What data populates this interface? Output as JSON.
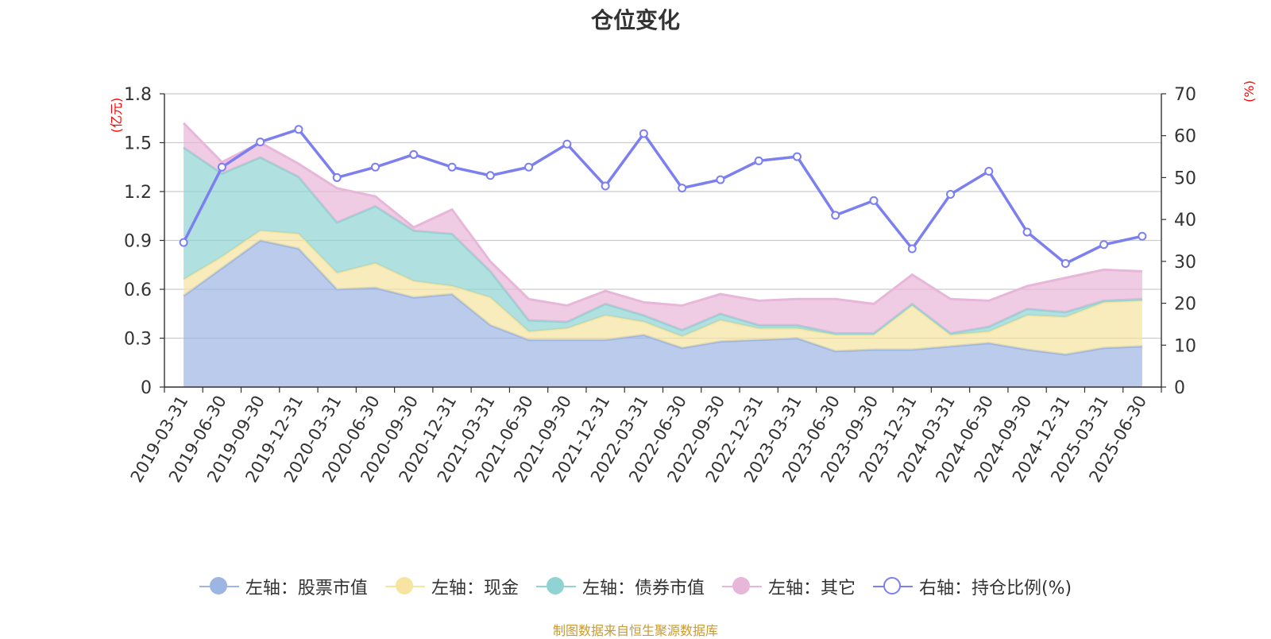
{
  "title": "仓位变化",
  "source_note": "制图数据来自恒生聚源数据库",
  "colors": {
    "stock": "#9db5e2",
    "cash": "#f7e4a0",
    "bond": "#8fd3d3",
    "other": "#e8b6d9",
    "ratio": "#7b7ff0",
    "unit": "#ff0000",
    "grid": "#cccccc"
  },
  "chart_data": {
    "type": "area",
    "title": "仓位变化",
    "left_axis": {
      "unit_label": "(亿元)",
      "ylim": [
        0,
        1.8
      ],
      "ticks": [
        "0",
        "0.3",
        "0.6",
        "0.9",
        "1.2",
        "1.5",
        "1.8"
      ]
    },
    "right_axis": {
      "unit_label": "(%)",
      "ylim": [
        0,
        70
      ],
      "ticks": [
        "0",
        "10",
        "20",
        "30",
        "40",
        "50",
        "60",
        "70"
      ]
    },
    "categories": [
      "2019-03-31",
      "2019-06-30",
      "2019-09-30",
      "2019-12-31",
      "2020-03-31",
      "2020-06-30",
      "2020-09-30",
      "2020-12-31",
      "2021-03-31",
      "2021-06-30",
      "2021-09-30",
      "2021-12-31",
      "2022-03-31",
      "2022-06-30",
      "2022-09-30",
      "2022-12-31",
      "2023-03-31",
      "2023-06-30",
      "2023-09-30",
      "2023-12-31",
      "2024-03-31",
      "2024-06-30",
      "2024-09-30",
      "2024-12-31",
      "2025-03-31",
      "2025-06-30"
    ],
    "series": [
      {
        "name": "左轴：股票市值",
        "axis": "left",
        "stacked": true,
        "values": [
          0.56,
          0.73,
          0.9,
          0.85,
          0.6,
          0.61,
          0.55,
          0.57,
          0.38,
          0.29,
          0.29,
          0.29,
          0.32,
          0.24,
          0.28,
          0.29,
          0.3,
          0.22,
          0.23,
          0.23,
          0.25,
          0.27,
          0.23,
          0.2,
          0.24,
          0.25
        ]
      },
      {
        "name": "左轴：现金",
        "axis": "left",
        "stacked": true,
        "values": [
          0.1,
          0.07,
          0.06,
          0.09,
          0.1,
          0.15,
          0.1,
          0.05,
          0.17,
          0.05,
          0.07,
          0.15,
          0.08,
          0.07,
          0.13,
          0.07,
          0.06,
          0.1,
          0.09,
          0.27,
          0.07,
          0.07,
          0.21,
          0.23,
          0.28,
          0.28
        ]
      },
      {
        "name": "左轴：债券市值",
        "axis": "left",
        "stacked": true,
        "values": [
          0.81,
          0.51,
          0.45,
          0.35,
          0.31,
          0.35,
          0.31,
          0.32,
          0.16,
          0.07,
          0.04,
          0.07,
          0.04,
          0.04,
          0.04,
          0.02,
          0.02,
          0.01,
          0.01,
          0.01,
          0.01,
          0.03,
          0.04,
          0.03,
          0.01,
          0.01
        ]
      },
      {
        "name": "左轴：其它",
        "axis": "left",
        "stacked": true,
        "values": [
          0.15,
          0.07,
          0.09,
          0.08,
          0.21,
          0.06,
          0.02,
          0.15,
          0.06,
          0.13,
          0.1,
          0.08,
          0.08,
          0.15,
          0.12,
          0.15,
          0.16,
          0.21,
          0.18,
          0.18,
          0.21,
          0.16,
          0.14,
          0.21,
          0.19,
          0.17
        ]
      },
      {
        "name": "右轴：持仓比例(%)",
        "axis": "right",
        "type": "line",
        "values": [
          34.5,
          52.5,
          58.5,
          61.5,
          50,
          52.5,
          55.5,
          52.5,
          50.5,
          52.5,
          58,
          48,
          60.5,
          47.5,
          49.5,
          54,
          55,
          41,
          44.5,
          33,
          46,
          51.5,
          37,
          29.5,
          34,
          36
        ]
      }
    ]
  }
}
